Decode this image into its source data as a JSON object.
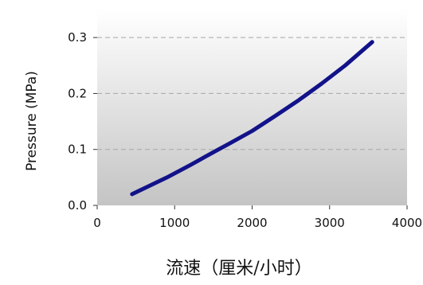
{
  "chart_data": {
    "type": "line",
    "title": "",
    "xlabel": "流速（厘米/小时）",
    "ylabel": "Pressure (MPa)",
    "xlim": [
      0,
      4000
    ],
    "ylim": [
      0.0,
      0.35
    ],
    "x_ticks": [
      "0",
      "1000",
      "2000",
      "3000",
      "4000"
    ],
    "y_ticks": [
      "0.0",
      "0.1",
      "0.2",
      "0.3"
    ],
    "grid": "horizontal dashed",
    "background": "vertical gradient white to gray",
    "series": [
      {
        "color": "#12128a",
        "x": [
          450,
          900,
          1200,
          1500,
          1700,
          2000,
          2300,
          2600,
          2900,
          3200,
          3550
        ],
        "y": [
          0.02,
          0.05,
          0.072,
          0.095,
          0.11,
          0.133,
          0.16,
          0.188,
          0.218,
          0.25,
          0.292
        ]
      }
    ]
  }
}
